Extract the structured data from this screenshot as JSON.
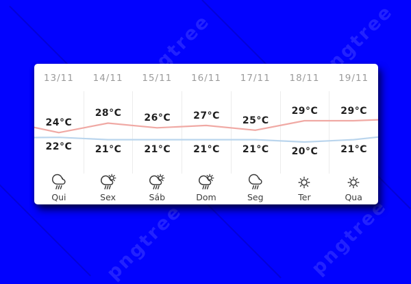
{
  "page": {
    "background_color": "#0202fe",
    "watermark_text": "pngtree"
  },
  "widget": {
    "columns": [
      {
        "date": "13/11",
        "high": "24°C",
        "low": "22°C",
        "icon": "rain-cloud",
        "day": "Qui"
      },
      {
        "date": "14/11",
        "high": "28°C",
        "low": "21°C",
        "icon": "sun-rain-cloud",
        "day": "Sex"
      },
      {
        "date": "15/11",
        "high": "26°C",
        "low": "21°C",
        "icon": "sun-rain-cloud",
        "day": "Sáb"
      },
      {
        "date": "16/11",
        "high": "27°C",
        "low": "21°C",
        "icon": "sun-rain-cloud",
        "day": "Dom"
      },
      {
        "date": "17/11",
        "high": "25°C",
        "low": "21°C",
        "icon": "rain-cloud",
        "day": "Seg"
      },
      {
        "date": "18/11",
        "high": "29°C",
        "low": "20°C",
        "icon": "sun",
        "day": "Ter"
      },
      {
        "date": "19/11",
        "high": "29°C",
        "low": "21°C",
        "icon": "sun",
        "day": "Qua"
      }
    ]
  },
  "chart_data": {
    "type": "line",
    "categories": [
      "13/11",
      "14/11",
      "15/11",
      "16/11",
      "17/11",
      "18/11",
      "19/11"
    ],
    "series": [
      {
        "name": "high-temperature",
        "unit": "°C",
        "color": "#f0a9a4",
        "values": [
          24,
          28,
          26,
          27,
          25,
          29,
          29
        ]
      },
      {
        "name": "low-temperature",
        "unit": "°C",
        "color": "#bad5ed",
        "values": [
          22,
          21,
          21,
          21,
          21,
          20,
          21
        ]
      }
    ],
    "edge_extension": {
      "high": [
        26.2,
        29.4
      ],
      "low": [
        21.9,
        22.1
      ]
    },
    "day_labels": [
      "Qui",
      "Sex",
      "Sáb",
      "Dom",
      "Seg",
      "Ter",
      "Qua"
    ],
    "icons": [
      "rain-cloud",
      "sun-rain-cloud",
      "sun-rain-cloud",
      "sun-rain-cloud",
      "rain-cloud",
      "sun",
      "sun"
    ],
    "grid": "vertical-dividers-only",
    "legend": "none"
  }
}
